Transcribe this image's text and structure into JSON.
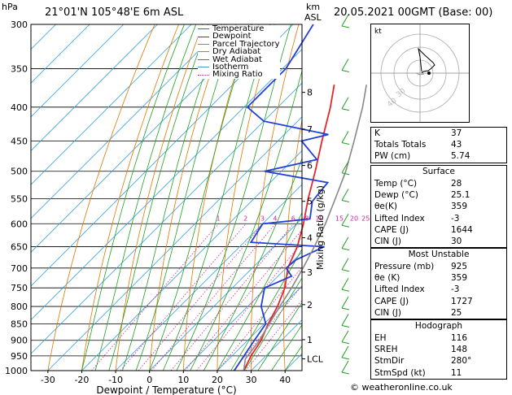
{
  "header": {
    "hpa_label": "hPa",
    "location": "21°01'N  105°48'E  6m  ASL",
    "km_label": "km",
    "asl_label": "ASL",
    "datetime": "20.05.2021  00GMT  (Base: 00)"
  },
  "legend": [
    {
      "label": "Temperature",
      "color": "#e8262a"
    },
    {
      "label": "Dewpoint",
      "color": "#2040d8"
    },
    {
      "label": "Parcel Trajectory",
      "color": "#888888"
    },
    {
      "label": "Dry Adiabat",
      "color": "#e07800"
    },
    {
      "label": "Wet Adiabat",
      "color": "#20a020"
    },
    {
      "label": "Isotherm",
      "color": "#30a0e0"
    },
    {
      "label": "Mixing Ratio",
      "color": "#d020a0"
    }
  ],
  "chart_data": {
    "type": "line",
    "xlabel": "Dewpoint / Temperature (°C)",
    "ylabel": "hPa",
    "x_ticks": [
      -30,
      -20,
      -10,
      0,
      10,
      20,
      30,
      40
    ],
    "xlim": [
      -35,
      40
    ],
    "pressure_levels": [
      300,
      350,
      400,
      450,
      500,
      550,
      600,
      650,
      700,
      750,
      800,
      850,
      900,
      950,
      1000
    ],
    "ylim": [
      1000,
      300
    ],
    "km_ticks": [
      {
        "km": "1",
        "p": 898
      },
      {
        "km": "2",
        "p": 795
      },
      {
        "km": "3",
        "p": 710
      },
      {
        "km": "4",
        "p": 630
      },
      {
        "km": "5",
        "p": 555
      },
      {
        "km": "6",
        "p": 490
      },
      {
        "km": "7",
        "p": 432
      },
      {
        "km": "8",
        "p": 380
      },
      {
        "km": "LCL",
        "p": 960
      }
    ],
    "mixing_ratio_axis_label": "Mixing Ratio (g/kg)",
    "mixing_ratio_labels": [
      "1",
      "2",
      "3",
      "4",
      "6",
      "8",
      "10",
      "15",
      "20",
      "25"
    ],
    "mixing_ratio_values": [
      1,
      2,
      3,
      4,
      6,
      8,
      10,
      15,
      20,
      25
    ],
    "series": [
      {
        "name": "Temperature",
        "color": "#e8262a",
        "p": [
          1000,
          950,
          900,
          850,
          800,
          750,
          700,
          650,
          600,
          550,
          500,
          450,
          400,
          370
        ],
        "t": [
          27.8,
          25.6,
          24.0,
          21.2,
          18.8,
          15.5,
          10.5,
          7.0,
          2.0,
          -4.0,
          -10.0,
          -17.0,
          -24.5,
          -30.0
        ]
      },
      {
        "name": "Dewpoint",
        "color": "#2040d8",
        "p": [
          1000,
          950,
          900,
          850,
          800,
          750,
          720,
          700,
          680,
          650,
          640,
          600,
          590,
          555,
          520,
          500,
          480,
          450,
          440,
          420,
          400,
          350,
          300
        ],
        "t": [
          25.0,
          23.5,
          22.0,
          20.5,
          14.0,
          9.5,
          14.0,
          10.0,
          10.5,
          15.0,
          -8.0,
          -10.0,
          2.5,
          -2.0,
          -3.0,
          -25.0,
          -13.0,
          -23.0,
          -17.0,
          -40.0,
          -49.0,
          -49.0,
          -54.0
        ]
      },
      {
        "name": "Parcel Trajectory",
        "color": "#888888",
        "p": [
          1000,
          960,
          900,
          850,
          800,
          750,
          700,
          650,
          600,
          550,
          500,
          450,
          400,
          370
        ],
        "t": [
          27.8,
          24.8,
          23.5,
          21.5,
          19.5,
          17.5,
          15.0,
          12.0,
          8.5,
          4.0,
          -1.0,
          -7.5,
          -15.0,
          -20.5
        ]
      }
    ]
  },
  "hodograph": {
    "label": "kt",
    "ring_labels": [
      "40",
      "30"
    ]
  },
  "indices": [
    {
      "label": "K",
      "value": "37"
    },
    {
      "label": "Totals Totals",
      "value": "43"
    },
    {
      "label": "PW (cm)",
      "value": "5.74"
    }
  ],
  "surface": {
    "title": "Surface",
    "rows": [
      {
        "label": "Temp (°C)",
        "value": "28"
      },
      {
        "label": "Dewp (°C)",
        "value": "25.1"
      },
      {
        "label": "θe(K)",
        "value": "359"
      },
      {
        "label": "Lifted Index",
        "value": "-3"
      },
      {
        "label": "CAPE (J)",
        "value": "1644"
      },
      {
        "label": "CIN (J)",
        "value": "30"
      }
    ]
  },
  "most_unstable": {
    "title": "Most Unstable",
    "rows": [
      {
        "label": "Pressure (mb)",
        "value": "925"
      },
      {
        "label": "θe (K)",
        "value": "359"
      },
      {
        "label": "Lifted Index",
        "value": "-3"
      },
      {
        "label": "CAPE (J)",
        "value": "1727"
      },
      {
        "label": "CIN (J)",
        "value": "25"
      }
    ]
  },
  "hodograph_table": {
    "title": "Hodograph",
    "rows": [
      {
        "label": "EH",
        "value": "116"
      },
      {
        "label": "SREH",
        "value": "148"
      },
      {
        "label": "StmDir",
        "value": "280°"
      },
      {
        "label": "StmSpd (kt)",
        "value": "11"
      }
    ]
  },
  "footer": "© weatheronline.co.uk"
}
